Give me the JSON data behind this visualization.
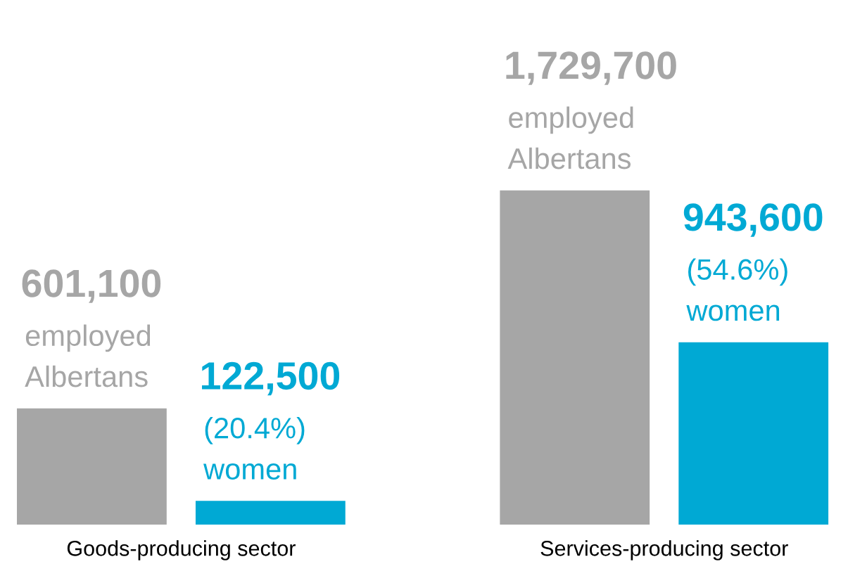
{
  "chart_data": {
    "type": "bar",
    "categories": [
      "Goods-producing sector",
      "Services-producing sector"
    ],
    "series": [
      {
        "color": "#a6a6a6",
        "values": [
          601100,
          1729700
        ],
        "value_labels": [
          "601,100\nemployed\nAlbertans",
          "1,729,700\nemployed\nAlbertans"
        ]
      },
      {
        "color": "#00a9d4",
        "values": [
          122500,
          943600
        ],
        "value_labels": [
          "122,500\n(20.4%)\nwomen",
          "943,600\n(54.6%)\nwomen"
        ]
      }
    ]
  }
}
